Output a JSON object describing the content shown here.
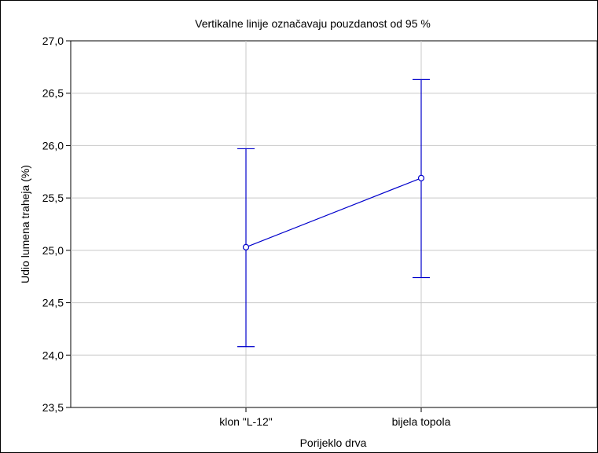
{
  "chart_data": {
    "type": "line",
    "title": "Vertikalne linije označavaju pouzdanost od 95 %",
    "xlabel": "Porijeklo drva",
    "ylabel": "Udio lumena traheja (%)",
    "categories": [
      "klon \"L-12\"",
      "bijela topola"
    ],
    "series": [
      {
        "means": [
          25.03,
          25.69
        ],
        "ci_low": [
          24.08,
          24.74
        ],
        "ci_high": [
          25.97,
          26.63
        ]
      }
    ],
    "ylim": [
      23.5,
      27.0
    ],
    "yticks": [
      23.5,
      24.0,
      24.5,
      25.0,
      25.5,
      26.0,
      26.5,
      27.0
    ],
    "ytick_labels": [
      "23,5",
      "24,0",
      "24,5",
      "25,0",
      "25,5",
      "26,0",
      "26,5",
      "27,0"
    ],
    "grid": true,
    "line_color": "#0000cc",
    "grid_color": "#c8c8c8"
  }
}
